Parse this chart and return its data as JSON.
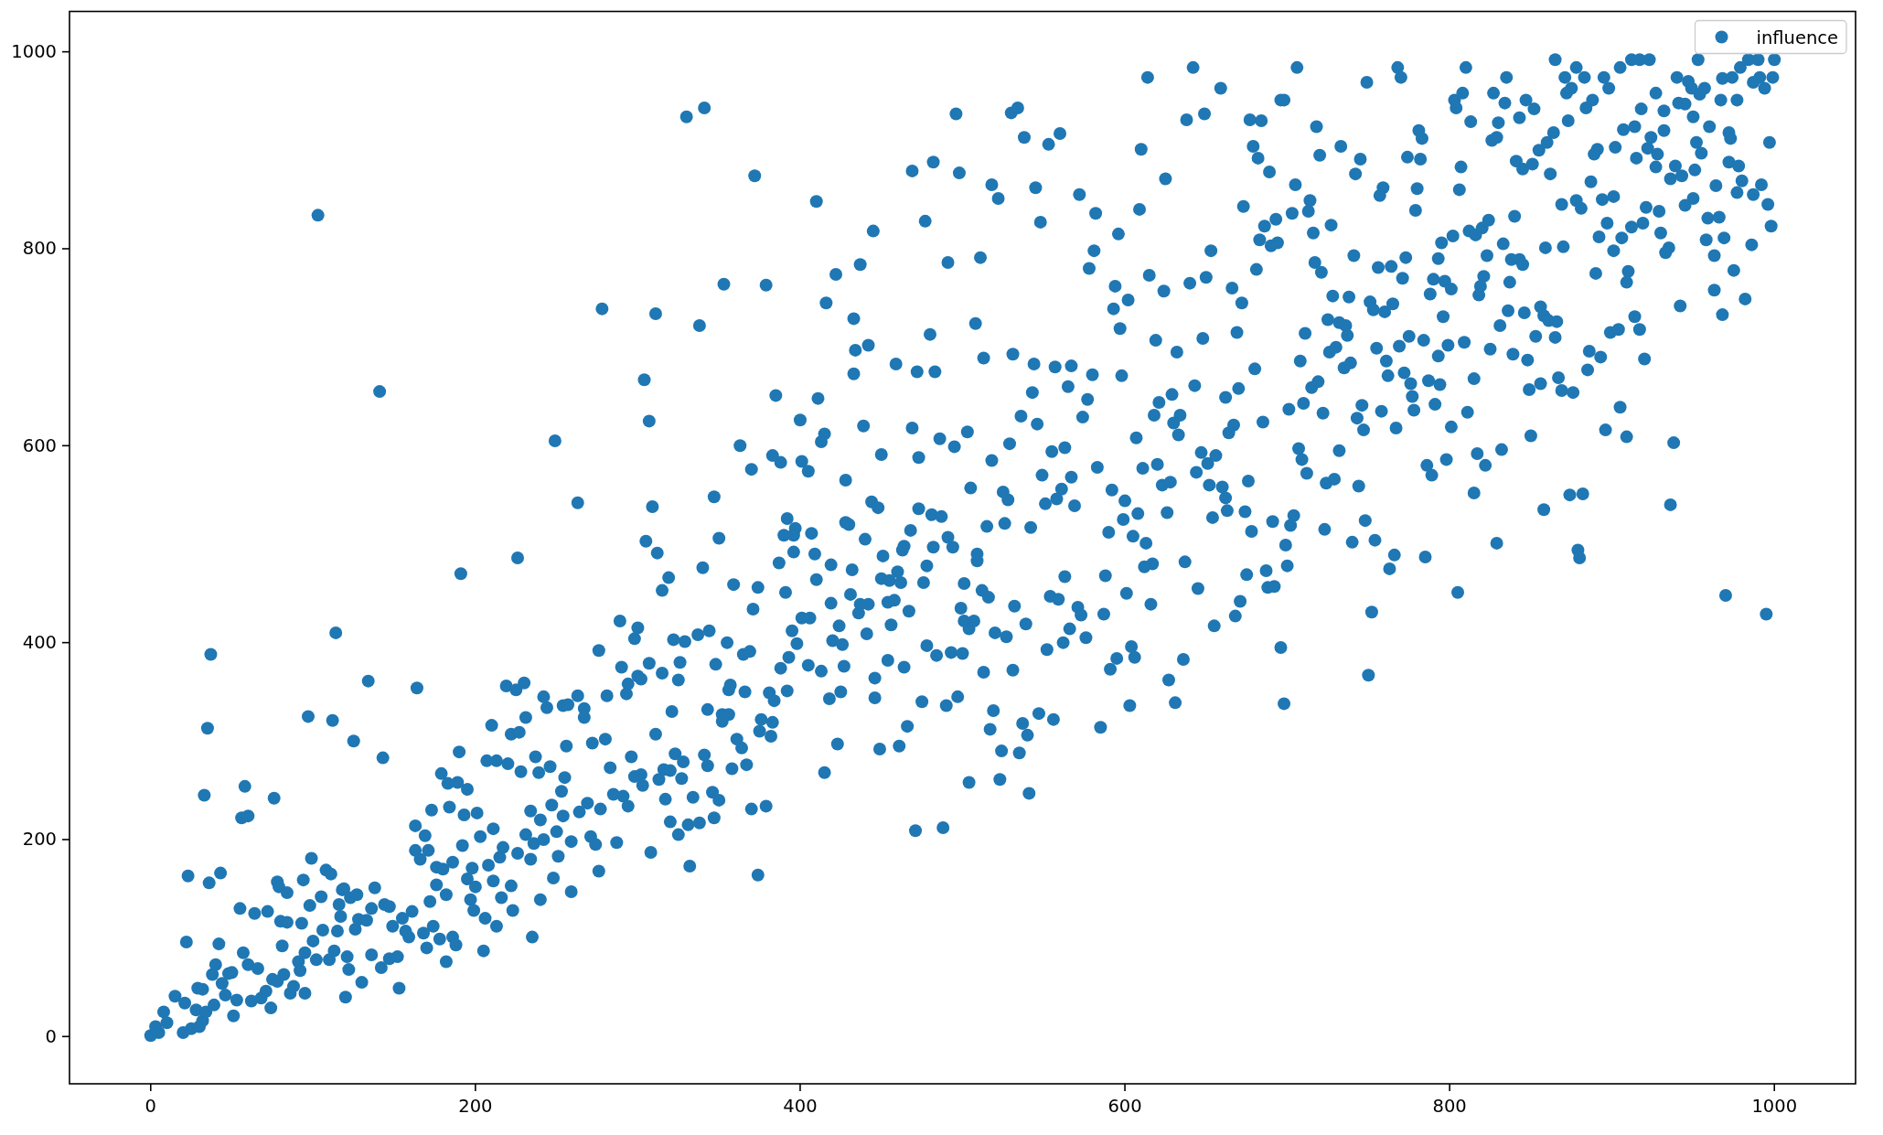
{
  "chart_data": {
    "type": "scatter",
    "xlim": [
      -50,
      1050
    ],
    "ylim": [
      -48,
      1041
    ],
    "xticks": [
      0,
      200,
      400,
      600,
      800,
      1000
    ],
    "yticks": [
      0,
      200,
      400,
      600,
      800,
      1000
    ],
    "legend": "top right",
    "marker": "circle",
    "series": [
      {
        "name": "influence",
        "color": "#1f77b4",
        "x": [
          0,
          3,
          5,
          8,
          10,
          15,
          20,
          21,
          25,
          28,
          30,
          32,
          34,
          29,
          32,
          39,
          38,
          40,
          44,
          48,
          50,
          46,
          51,
          53,
          57,
          60,
          62,
          66,
          68,
          71,
          74,
          75,
          78,
          82,
          86,
          88,
          91,
          92,
          95,
          95,
          102,
          100,
          106,
          110,
          113,
          120,
          121,
          122,
          115,
          117,
          116,
          118,
          123,
          127,
          126,
          128,
          133,
          130,
          136,
          138,
          144,
          147,
          149,
          155,
          159,
          157,
          136,
          142,
          147,
          152,
          153,
          161,
          163,
          163,
          166,
          169,
          171,
          173,
          172,
          174,
          168,
          170,
          178,
          176,
          176,
          180,
          182,
          179,
          183,
          189,
          195,
          184,
          193,
          201,
          186,
          188,
          182,
          186,
          192,
          195,
          197,
          199,
          200,
          198,
          203,
          206,
          205,
          208,
          211,
          213,
          216,
          222,
          223,
          226,
          215,
          217,
          211,
          207,
          213,
          210,
          220,
          219,
          225,
          230,
          231,
          222,
          227,
          228,
          190,
          234,
          231,
          234,
          235,
          240,
          240,
          236,
          242,
          239,
          237,
          242,
          244,
          246,
          247,
          248,
          251,
          250,
          254,
          254,
          257,
          256,
          255,
          253,
          259,
          259,
          263,
          264,
          267,
          267,
          269,
          271,
          272,
          274,
          276,
          276,
          277,
          280,
          281,
          283,
          285,
          287,
          289,
          290,
          294,
          298,
          296,
          298,
          291,
          294,
          103,
          141,
          278,
          249,
          263,
          226,
          191,
          114,
          37,
          134,
          164,
          35,
          97,
          112,
          125,
          143,
          33,
          58,
          56,
          60,
          76,
          23,
          43,
          36,
          22,
          42,
          55,
          64,
          72,
          81,
          99,
          94,
          78,
          79,
          84,
          80,
          84,
          93,
          98,
          105,
          108,
          111,
          119,
          471,
          488,
          374,
          332,
          308,
          325,
          320,
          334,
          331,
          338,
          347,
          317,
          346,
          350,
          370,
          379,
          415,
          504,
          523,
          541,
          449,
          461,
          423,
          466,
          524,
          535,
          517,
          519,
          540,
          537,
          547,
          556,
          585,
          603,
          631,
          627,
          591,
          595,
          604,
          606,
          636,
          645,
          655,
          668,
          671,
          637,
          617,
          612,
          601,
          616,
          587,
          588,
          563,
          554,
          559,
          571,
          573,
          566,
          576,
          552,
          562,
          532,
          539,
          520,
          527,
          531,
          513,
          512,
          516,
          501,
          499,
          501,
          507,
          504,
          478,
          484,
          493,
          500,
          475,
          490,
          497,
          509,
          509,
          476,
          478,
          467,
          456,
          454,
          458,
          450,
          455,
          462,
          460,
          451,
          464,
          454,
          446,
          446,
          441,
          436,
          442,
          437,
          431,
          432,
          424,
          419,
          419,
          420,
          426,
          427,
          418,
          425,
          413,
          405,
          410,
          409,
          401,
          406,
          395,
          398,
          391,
          387,
          393,
          388,
          392,
          381,
          384,
          376,
          383,
          375,
          382,
          359,
          374,
          371,
          340,
          319,
          315,
          312,
          322,
          329,
          337,
          344,
          355,
          365,
          369,
          348,
          326,
          325,
          315,
          307,
          300,
          300,
          302,
          293,
          321,
          343,
          352,
          356,
          352,
          357,
          356,
          366,
          361,
          364,
          367,
          358,
          341,
          343,
          323,
          328,
          327,
          316,
          320,
          313,
          311,
          302,
          303,
          330,
          341,
          372,
          410,
          496,
          530,
          534,
          538,
          553,
          560,
          614,
          642,
          659,
          638,
          649,
          610,
          625,
          609,
          596,
          469,
          482,
          498,
          518,
          522,
          545,
          572,
          582,
          548,
          477,
          445,
          422,
          437,
          353,
          379,
          311,
          338,
          416,
          433,
          491,
          511,
          508,
          578,
          581,
          594,
          602,
          593,
          597,
          615,
          624,
          640,
          650,
          653,
          673,
          666,
          672,
          669,
          619,
          632,
          648,
          304,
          307,
          385,
          411,
          433,
          434,
          442,
          459,
          472,
          483,
          480,
          513,
          531,
          544,
          557,
          567,
          580,
          598,
          543,
          565,
          577,
          536,
          574,
          546,
          469,
          439,
          400,
          415,
          413,
          363,
          383,
          388,
          370,
          401,
          405,
          450,
          473,
          486,
          503,
          495,
          529,
          518,
          555,
          563,
          607,
          618,
          621,
          629,
          643,
          634,
          630,
          633,
          662,
          670,
          667,
          664,
          680,
          583,
          549,
          567,
          561,
          551,
          558,
          569,
          592,
          600,
          608,
          599,
          611,
          620,
          623,
          628,
          626,
          644,
          647,
          651,
          656,
          652,
          660,
          662,
          654,
          663,
          674,
          676,
          678,
          590,
          605,
          613,
          505,
          525,
          528,
          542,
          526,
          515,
          428,
          444,
          448,
          473,
          481,
          487,
          468,
          491,
          494,
          482,
          463,
          464,
          440,
          428,
          430,
          392,
          397,
          396,
          390,
          407,
          396,
          350,
          347,
          309,
          305,
          706,
          696,
          698,
          677,
          684,
          718,
          749,
          768,
          770,
          810,
          835,
          803,
          808,
          804,
          827,
          834,
          813,
          830,
          847,
          852,
          843,
          865,
          878,
          883,
          871,
          875,
          872,
          895,
          898,
          888,
          884,
          873,
          905,
          912,
          917,
          923,
          927,
          918,
          932,
          940,
          947,
          949,
          957,
          954,
          953,
          968,
          974,
          979,
          984,
          990,
          1000,
          987,
          991,
          999,
          994,
          967,
          977,
          941,
          945,
          950,
          997,
          960,
          972,
          973,
          952,
          955,
          932,
          924,
          928,
          922,
          907,
          914,
          902,
          915,
          891,
          889,
          927,
          939,
          936,
          943,
          951,
          972,
          978,
          964,
          980,
          992,
          977,
          987,
          996,
          998,
          986,
          975,
          982,
          963,
          968,
          942,
          969,
          958,
          963,
          959,
          966,
          950,
          945,
          921,
          929,
          930,
          935,
          933,
          919,
          912,
          897,
          892,
          906,
          901,
          890,
          910,
          909,
          887,
          894,
          901,
          878,
          881,
          869,
          862,
          855,
          860,
          864,
          841,
          845,
          851,
          826,
          829,
          807,
          806,
          781,
          783,
          774,
          782,
          780,
          779,
          759,
          757,
          745,
          742,
          733,
          720,
          679,
          682,
          689,
          705,
          714,
          713,
          703,
          693,
          686,
          683,
          690,
          694,
          716,
          727,
          681,
          717,
          721,
          741,
          756,
          764,
          773,
          771,
          728,
          738,
          751,
          753,
          760,
          765,
          725,
          732,
          736,
          737,
          711,
          708,
          726,
          730,
          735,
          739,
          715,
          719,
          710,
          701,
          722,
          685,
          746,
          743,
          747,
          758,
          767,
          761,
          762,
          755,
          769,
          775,
          784,
          772,
          776,
          777,
          778,
          787,
          794,
          791,
          796,
          793,
          799,
          809,
          788,
          790,
          797,
          801,
          793,
          795,
          802,
          812,
          816,
          820,
          824,
          823,
          833,
          840,
          838,
          843,
          845,
          821,
          819,
          818,
          837,
          836,
          846,
          856,
          858,
          861,
          866,
          853,
          865,
          831,
          815,
          811,
          801,
          825,
          839,
          848,
          859,
          870,
          886,
          893,
          885,
          899,
          904,
          914,
          917,
          920,
          867,
          869,
          876,
          849,
          856,
          905,
          896,
          909,
          938,
          850,
          936,
          879,
          880,
          874,
          882,
          858,
          829,
          815,
          817,
          822,
          832,
          786,
          789,
          798,
          707,
          709,
          712,
          732,
          724,
          729,
          744,
          691,
          704,
          702,
          699,
          723,
          748,
          740,
          754,
          766,
          785,
          675,
          687,
          688,
          692,
          700,
          696,
          698,
          752,
          750,
          763,
          805,
          970,
          995
        ],
        "values": [
          1,
          10,
          4,
          25,
          14,
          41,
          4,
          34,
          8,
          27,
          10,
          16,
          25,
          49,
          48,
          32,
          63,
          73,
          54,
          64,
          65,
          42,
          21,
          37,
          85,
          73,
          36,
          69,
          39,
          46,
          29,
          58,
          56,
          63,
          44,
          51,
          76,
          67,
          44,
          85,
          78,
          97,
          108,
          78,
          87,
          40,
          81,
          68,
          107,
          122,
          134,
          149,
          141,
          144,
          109,
          119,
          118,
          55,
          130,
          151,
          134,
          132,
          112,
          120,
          101,
          107,
          83,
          70,
          79,
          81,
          49,
          127,
          189,
          214,
          180,
          204,
          189,
          230,
          137,
          112,
          105,
          90,
          99,
          172,
          154,
          170,
          144,
          267,
          257,
          258,
          251,
          233,
          225,
          227,
          101,
          93,
          76,
          177,
          194,
          160,
          139,
          128,
          152,
          171,
          203,
          120,
          87,
          174,
          158,
          112,
          141,
          153,
          128,
          186,
          182,
          192,
          211,
          280,
          280,
          316,
          277,
          356,
          352,
          359,
          324,
          307,
          309,
          269,
          289,
          229,
          205,
          180,
          101,
          139,
          220,
          196,
          200,
          268,
          284,
          345,
          334,
          274,
          235,
          161,
          183,
          208,
          224,
          336,
          337,
          295,
          263,
          249,
          198,
          147,
          346,
          228,
          333,
          324,
          237,
          203,
          298,
          195,
          392,
          168,
          231,
          302,
          346,
          273,
          246,
          197,
          422,
          375,
          358,
          404,
          284,
          264,
          244,
          234,
          834,
          655,
          739,
          605,
          542,
          486,
          470,
          410,
          388,
          361,
          354,
          313,
          325,
          321,
          300,
          283,
          245,
          254,
          222,
          224,
          242,
          163,
          166,
          156,
          96,
          94,
          130,
          125,
          127,
          92,
          181,
          159,
          157,
          152,
          146,
          117,
          116,
          115,
          133,
          142,
          169,
          165,
          150,
          209,
          212,
          164,
          173,
          187,
          205,
          218,
          243,
          215,
          217,
          222,
          241,
          248,
          240,
          231,
          234,
          268,
          258,
          261,
          247,
          292,
          295,
          297,
          315,
          290,
          288,
          312,
          331,
          306,
          318,
          328,
          322,
          314,
          336,
          339,
          362,
          373,
          384,
          396,
          385,
          383,
          455,
          417,
          427,
          442,
          482,
          480,
          477,
          450,
          439,
          429,
          468,
          467,
          447,
          444,
          436,
          428,
          414,
          405,
          393,
          400,
          437,
          419,
          410,
          406,
          372,
          370,
          453,
          446,
          460,
          435,
          422,
          422,
          414,
          397,
          387,
          390,
          389,
          340,
          336,
          345,
          490,
          483,
          461,
          478,
          432,
          418,
          441,
          443,
          465,
          463,
          461,
          472,
          488,
          375,
          382,
          364,
          344,
          409,
          430,
          439,
          439,
          449,
          474,
          417,
          479,
          440,
          402,
          398,
          376,
          343,
          350,
          371,
          377,
          464,
          490,
          425,
          425,
          412,
          399,
          451,
          481,
          385,
          374,
          351,
          349,
          341,
          322,
          319,
          310,
          305,
          459,
          456,
          434,
          476,
          466,
          453,
          491,
          403,
          401,
          408,
          412,
          400,
          388,
          391,
          378,
          380,
          362,
          369,
          379,
          415,
          366,
          363,
          348,
          330,
          332,
          327,
          327,
          320,
          357,
          352,
          350,
          302,
          293,
          276,
          272,
          286,
          275,
          287,
          279,
          262,
          271,
          270,
          261,
          307,
          266,
          255,
          934,
          943,
          874,
          848,
          937,
          938,
          943,
          913,
          906,
          917,
          974,
          984,
          963,
          931,
          937,
          901,
          871,
          840,
          815,
          879,
          888,
          877,
          865,
          851,
          862,
          855,
          836,
          827,
          828,
          818,
          774,
          784,
          764,
          763,
          734,
          722,
          745,
          729,
          786,
          791,
          724,
          780,
          798,
          762,
          748,
          739,
          719,
          773,
          757,
          765,
          771,
          798,
          843,
          760,
          745,
          715,
          707,
          695,
          709,
          667,
          625,
          651,
          648,
          673,
          697,
          702,
          683,
          675,
          675,
          713,
          689,
          693,
          683,
          680,
          681,
          672,
          671,
          654,
          660,
          647,
          630,
          629,
          622,
          618,
          620,
          626,
          612,
          604,
          600,
          590,
          583,
          576,
          584,
          574,
          591,
          588,
          607,
          614,
          599,
          602,
          585,
          594,
          598,
          608,
          631,
          644,
          652,
          661,
          631,
          623,
          611,
          649,
          658,
          621,
          613,
          678,
          578,
          570,
          568,
          556,
          541,
          546,
          539,
          555,
          544,
          531,
          525,
          577,
          581,
          560,
          563,
          532,
          573,
          593,
          582,
          590,
          560,
          558,
          547,
          527,
          534,
          533,
          564,
          513,
          512,
          508,
          501,
          557,
          553,
          545,
          517,
          521,
          518,
          565,
          543,
          537,
          536,
          530,
          528,
          514,
          507,
          497,
          497,
          494,
          498,
          505,
          522,
          520,
          526,
          516,
          509,
          509,
          511,
          492,
          506,
          548,
          538,
          503,
          984,
          951,
          951,
          931,
          930,
          924,
          969,
          984,
          974,
          984,
          974,
          951,
          958,
          943,
          958,
          948,
          929,
          928,
          951,
          942,
          933,
          992,
          984,
          974,
          974,
          963,
          958,
          974,
          963,
          951,
          943,
          930,
          984,
          992,
          992,
          992,
          958,
          942,
          940,
          974,
          970,
          963,
          963,
          957,
          992,
          973,
          974,
          984,
          992,
          992,
          992,
          969,
          974,
          974,
          963,
          951,
          951,
          948,
          947,
          934,
          908,
          924,
          918,
          912,
          908,
          897,
          920,
          913,
          896,
          902,
          921,
          924,
          903,
          892,
          901,
          896,
          883,
          884,
          871,
          874,
          880,
          888,
          884,
          864,
          869,
          865,
          857,
          855,
          845,
          823,
          804,
          778,
          749,
          758,
          733,
          742,
          811,
          809,
          793,
          831,
          832,
          851,
          844,
          842,
          838,
          816,
          801,
          796,
          826,
          822,
          826,
          812,
          811,
          798,
          775,
          777,
          766,
          868,
          850,
          853,
          849,
          841,
          845,
          876,
          900,
          908,
          918,
          889,
          881,
          886,
          910,
          913,
          883,
          860,
          920,
          912,
          893,
          891,
          861,
          839,
          862,
          854,
          891,
          876,
          904,
          895,
          904,
          892,
          878,
          865,
          849,
          838,
          836,
          830,
          823,
          809,
          803,
          806,
          816,
          824,
          779,
          786,
          776,
          793,
          781,
          782,
          791,
          770,
          752,
          751,
          746,
          738,
          736,
          744,
          728,
          725,
          722,
          712,
          714,
          686,
          695,
          700,
          679,
          684,
          659,
          665,
          643,
          637,
          633,
          624,
          641,
          628,
          616,
          635,
          618,
          686,
          671,
          699,
          701,
          711,
          707,
          674,
          663,
          650,
          636,
          666,
          662,
          642,
          731,
          691,
          702,
          705,
          754,
          769,
          767,
          759,
          790,
          806,
          813,
          818,
          814,
          821,
          829,
          793,
          805,
          833,
          789,
          789,
          784,
          772,
          762,
          753,
          766,
          737,
          735,
          741,
          732,
          727,
          726,
          711,
          710,
          722,
          668,
          634,
          619,
          698,
          693,
          687,
          801,
          802,
          696,
          690,
          677,
          715,
          718,
          731,
          718,
          688,
          669,
          656,
          654,
          657,
          663,
          639,
          616,
          609,
          603,
          610,
          540,
          494,
          486,
          550,
          551,
          535,
          501,
          552,
          592,
          580,
          596,
          580,
          570,
          586,
          597,
          586,
          572,
          595,
          562,
          566,
          559,
          523,
          529,
          519,
          499,
          515,
          524,
          502,
          504,
          489,
          487,
          469,
          473,
          456,
          457,
          478,
          395,
          338,
          431,
          367,
          475,
          451,
          448,
          429
        ]
      }
    ]
  }
}
